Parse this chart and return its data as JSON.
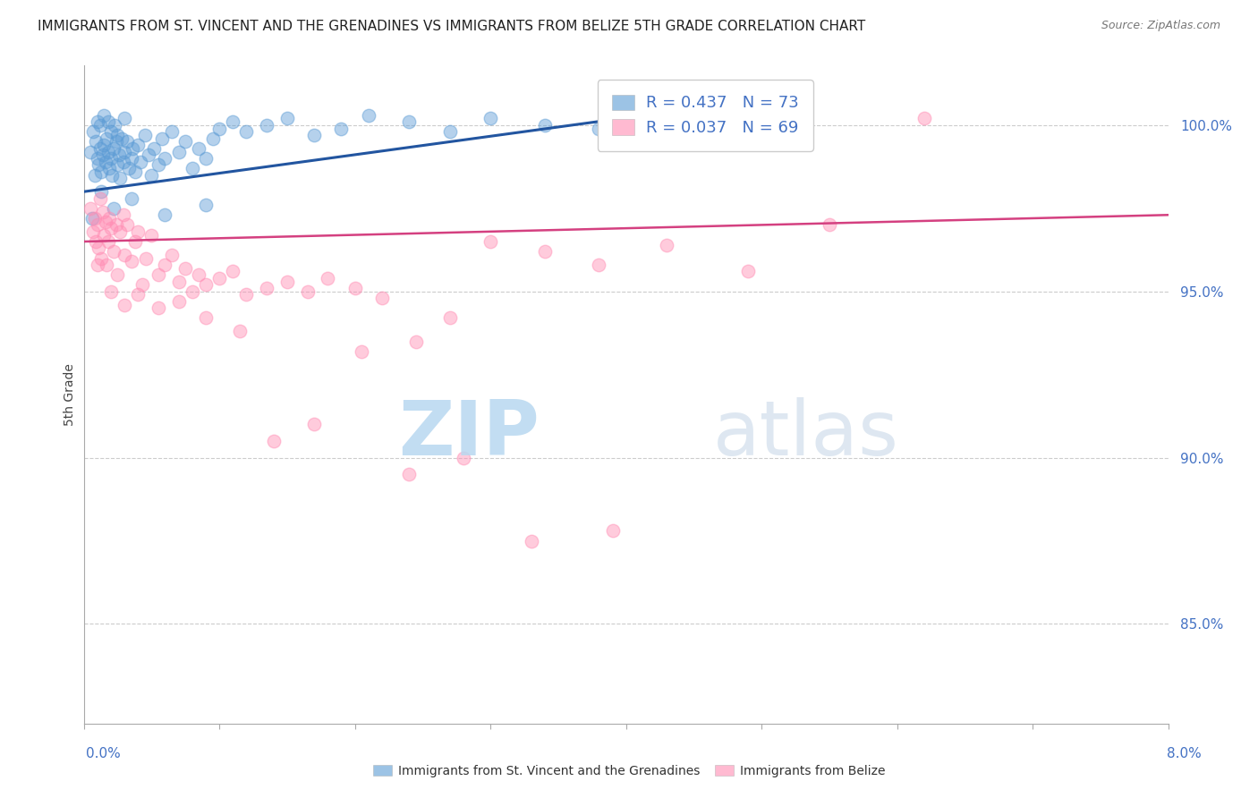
{
  "title": "IMMIGRANTS FROM ST. VINCENT AND THE GRENADINES VS IMMIGRANTS FROM BELIZE 5TH GRADE CORRELATION CHART",
  "source": "Source: ZipAtlas.com",
  "ylabel": "5th Grade",
  "xmin": 0.0,
  "xmax": 8.0,
  "ymin": 82.0,
  "ymax": 101.8,
  "yticks": [
    85.0,
    90.0,
    95.0,
    100.0
  ],
  "ytick_labels": [
    "85.0%",
    "90.0%",
    "95.0%",
    "100.0%"
  ],
  "legend_entries": [
    {
      "label": "R = 0.437   N = 73",
      "color": "#6baed6"
    },
    {
      "label": "R = 0.037   N = 69",
      "color": "#fb8fb3"
    }
  ],
  "legend_bottom_left": "Immigrants from St. Vincent and the Grenadines",
  "legend_bottom_right": "Immigrants from Belize",
  "blue_scatter_x": [
    0.05,
    0.07,
    0.08,
    0.09,
    0.1,
    0.1,
    0.11,
    0.12,
    0.12,
    0.13,
    0.14,
    0.15,
    0.15,
    0.16,
    0.17,
    0.18,
    0.18,
    0.19,
    0.2,
    0.2,
    0.21,
    0.22,
    0.23,
    0.24,
    0.25,
    0.25,
    0.26,
    0.27,
    0.28,
    0.29,
    0.3,
    0.3,
    0.32,
    0.33,
    0.35,
    0.36,
    0.38,
    0.4,
    0.42,
    0.45,
    0.48,
    0.5,
    0.52,
    0.55,
    0.58,
    0.6,
    0.65,
    0.7,
    0.75,
    0.8,
    0.85,
    0.9,
    0.95,
    1.0,
    1.1,
    1.2,
    1.35,
    1.5,
    1.7,
    1.9,
    2.1,
    2.4,
    2.7,
    3.0,
    3.4,
    3.8,
    4.2,
    0.06,
    0.13,
    0.22,
    0.35,
    0.6,
    0.9
  ],
  "blue_scatter_y": [
    99.2,
    99.8,
    98.5,
    99.5,
    99.0,
    100.1,
    98.8,
    99.3,
    100.0,
    98.6,
    99.1,
    99.4,
    100.3,
    98.9,
    99.6,
    99.2,
    100.1,
    98.7,
    99.0,
    99.8,
    98.5,
    99.3,
    100.0,
    99.5,
    98.8,
    99.7,
    99.1,
    98.4,
    99.6,
    98.9,
    99.2,
    100.2,
    99.5,
    98.7,
    99.0,
    99.3,
    98.6,
    99.4,
    98.9,
    99.7,
    99.1,
    98.5,
    99.3,
    98.8,
    99.6,
    99.0,
    99.8,
    99.2,
    99.5,
    98.7,
    99.3,
    99.0,
    99.6,
    99.9,
    100.1,
    99.8,
    100.0,
    100.2,
    99.7,
    99.9,
    100.3,
    100.1,
    99.8,
    100.2,
    100.0,
    99.9,
    99.5,
    97.2,
    98.0,
    97.5,
    97.8,
    97.3,
    97.6
  ],
  "pink_scatter_x": [
    0.05,
    0.07,
    0.08,
    0.09,
    0.1,
    0.11,
    0.12,
    0.13,
    0.14,
    0.15,
    0.16,
    0.17,
    0.18,
    0.19,
    0.2,
    0.22,
    0.24,
    0.25,
    0.27,
    0.29,
    0.3,
    0.32,
    0.35,
    0.38,
    0.4,
    0.43,
    0.46,
    0.5,
    0.55,
    0.6,
    0.65,
    0.7,
    0.75,
    0.8,
    0.85,
    0.9,
    1.0,
    1.1,
    1.2,
    1.35,
    1.5,
    1.65,
    1.8,
    2.0,
    2.2,
    2.45,
    2.7,
    3.0,
    3.4,
    3.8,
    4.3,
    4.9,
    5.5,
    6.2,
    0.1,
    0.2,
    0.3,
    0.4,
    0.55,
    0.7,
    0.9,
    1.15,
    1.4,
    1.7,
    2.05,
    2.4,
    2.8,
    3.3,
    3.9
  ],
  "pink_scatter_y": [
    97.5,
    96.8,
    97.2,
    96.5,
    97.0,
    96.3,
    97.8,
    96.0,
    97.4,
    96.7,
    97.1,
    95.8,
    96.5,
    97.2,
    96.9,
    96.2,
    97.0,
    95.5,
    96.8,
    97.3,
    96.1,
    97.0,
    95.9,
    96.5,
    96.8,
    95.2,
    96.0,
    96.7,
    95.5,
    95.8,
    96.1,
    95.3,
    95.7,
    95.0,
    95.5,
    95.2,
    95.4,
    95.6,
    94.9,
    95.1,
    95.3,
    95.0,
    95.4,
    95.1,
    94.8,
    93.5,
    94.2,
    96.5,
    96.2,
    95.8,
    96.4,
    95.6,
    97.0,
    100.2,
    95.8,
    95.0,
    94.6,
    94.9,
    94.5,
    94.7,
    94.2,
    93.8,
    90.5,
    91.0,
    93.2,
    89.5,
    90.0,
    87.5,
    87.8
  ],
  "blue_line_x": [
    0.0,
    4.5
  ],
  "blue_line_y": [
    98.0,
    100.5
  ],
  "pink_line_x": [
    0.0,
    8.0
  ],
  "pink_line_y": [
    96.5,
    97.3
  ],
  "blue_color": "#5b9bd5",
  "pink_color": "#ff8cb3",
  "blue_line_color": "#2255a0",
  "pink_line_color": "#d44080",
  "title_fontsize": 11,
  "source_fontsize": 9,
  "axis_label_fontsize": 10,
  "legend_fontsize": 13,
  "watermark_zip": "ZIP",
  "watermark_atlas": "atlas"
}
